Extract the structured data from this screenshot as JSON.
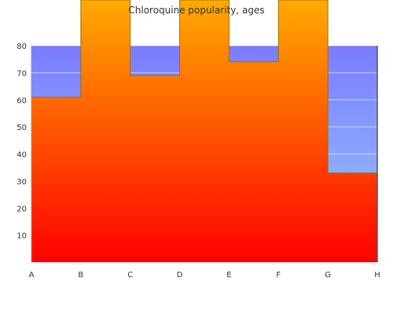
{
  "chart_data": {
    "type": "area",
    "title": "Chloroquine popularity, ages",
    "xlabel": "",
    "ylabel": "",
    "categories": [
      "A",
      "B",
      "C",
      "D",
      "E",
      "F",
      "G",
      "H"
    ],
    "values": [
      61,
      100,
      69,
      100,
      74,
      100,
      33,
      33
    ],
    "ylim": [
      0,
      80
    ],
    "yticks": [
      10,
      20,
      30,
      40,
      50,
      60,
      70,
      80
    ],
    "grid": true,
    "legend": "none",
    "colors": {
      "fill_top": "#ffaa00",
      "fill_bottom": "#ff0000",
      "background_top": "#7b7bff",
      "background_bottom": "#99ccff",
      "outline": "#a07000",
      "grid": "#ffffff"
    }
  }
}
